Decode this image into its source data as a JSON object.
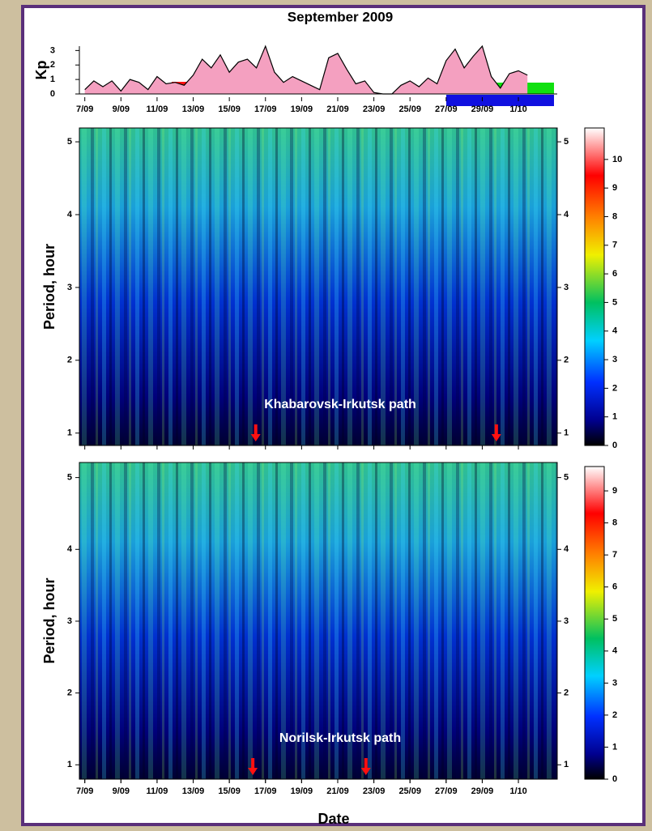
{
  "title": "September 2009",
  "x_label": "Date",
  "chart_data": [
    {
      "type": "area",
      "y_label": "Kp",
      "color": "#f4a0c0",
      "x": [
        7,
        7.5,
        8,
        8.5,
        9,
        9.5,
        10,
        10.5,
        11,
        11.5,
        12,
        12.5,
        13,
        13.5,
        14,
        14.5,
        15,
        15.5,
        16,
        16.5,
        17,
        17.5,
        18,
        18.5,
        19,
        19.5,
        20,
        20.5,
        21,
        21.5,
        22,
        22.5,
        23,
        23.5,
        24,
        24.5,
        25,
        25.5,
        26,
        26.5,
        27,
        27.5,
        28,
        28.5,
        29,
        29.5,
        30,
        30.5,
        31,
        31.5
      ],
      "values": [
        0.3,
        0.9,
        0.5,
        0.9,
        0.2,
        1,
        0.8,
        0.3,
        1.2,
        0.7,
        0.8,
        0.6,
        1.3,
        2.4,
        1.8,
        2.7,
        1.5,
        2.2,
        2.4,
        1.8,
        3.3,
        1.5,
        0.8,
        1.2,
        0.9,
        0.6,
        0.3,
        2.5,
        2.8,
        1.7,
        0.7,
        0.9,
        0.1,
        0,
        0,
        0.6,
        0.9,
        0.5,
        1.1,
        0.7,
        2.3,
        3.1,
        1.8,
        2.6,
        3.3,
        1.2,
        0.4,
        1.4,
        1.6,
        1.3
      ],
      "xlim": [
        6.7,
        33.15
      ],
      "ylim": [
        0,
        3.3
      ],
      "yticks": [
        0,
        1,
        2,
        3
      ],
      "xticks": [
        {
          "value": 7,
          "label": "7/09"
        },
        {
          "value": 9,
          "label": "9/09"
        },
        {
          "value": 11,
          "label": "11/09"
        },
        {
          "value": 13,
          "label": "13/09"
        },
        {
          "value": 15,
          "label": "15/09"
        },
        {
          "value": 17,
          "label": "17/09"
        },
        {
          "value": 19,
          "label": "19/09"
        },
        {
          "value": 21,
          "label": "21/09"
        },
        {
          "value": 23,
          "label": "23/09"
        },
        {
          "value": 25,
          "label": "25/09"
        },
        {
          "value": 27,
          "label": "27/09"
        },
        {
          "value": 29,
          "label": "29/09"
        },
        {
          "value": 31,
          "label": "1/10"
        }
      ]
    },
    {
      "type": "spectrogram",
      "y_label": "Period, hour",
      "annotation": "Khabarovsk-Irkutsk path",
      "xlim": [
        6.7,
        33.15
      ],
      "ylim": [
        0.83,
        5.19
      ],
      "yticks": [
        1,
        2,
        3,
        4,
        5
      ],
      "arrows": [
        16.46,
        29.78
      ],
      "clim": [
        0,
        11.1
      ],
      "cticks": [
        0,
        1,
        2,
        3,
        4,
        5,
        6,
        7,
        8,
        9,
        10
      ]
    },
    {
      "type": "spectrogram",
      "y_label": "Period, hour",
      "annotation": "Norilsk-Irkutsk path",
      "xlim": [
        6.7,
        33.15
      ],
      "ylim": [
        0.8,
        5.21
      ],
      "yticks": [
        1,
        2,
        3,
        4,
        5
      ],
      "arrows": [
        16.3,
        22.56
      ],
      "clim": [
        0,
        9.76
      ],
      "cticks": [
        0,
        1,
        2,
        3,
        4,
        5,
        6,
        7,
        8,
        9
      ],
      "xticks": [
        {
          "value": 7,
          "label": "7/09"
        },
        {
          "value": 9,
          "label": "9/09"
        },
        {
          "value": 11,
          "label": "11/09"
        },
        {
          "value": 13,
          "label": "13/09"
        },
        {
          "value": 15,
          "label": "15/09"
        },
        {
          "value": 17,
          "label": "17/09"
        },
        {
          "value": 19,
          "label": "19/09"
        },
        {
          "value": 21,
          "label": "21/09"
        },
        {
          "value": 23,
          "label": "23/09"
        },
        {
          "value": 25,
          "label": "25/09"
        },
        {
          "value": 27,
          "label": "27/09"
        },
        {
          "value": 29,
          "label": "29/09"
        },
        {
          "value": 31,
          "label": "1/10"
        }
      ]
    }
  ]
}
